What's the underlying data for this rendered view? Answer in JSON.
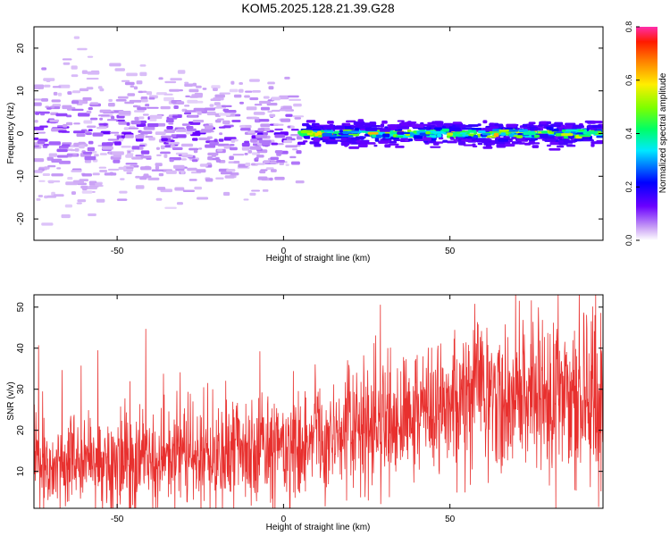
{
  "title": "KOM5.2025.128.21.39.G28",
  "chart_data": [
    {
      "type": "heatmap",
      "title": "KOM5.2025.128.21.39.G28",
      "xlabel": "Height of straight line (km)",
      "ylabel": "Frequency (Hz)",
      "xlim": [
        -75,
        96
      ],
      "ylim": [
        -25,
        25
      ],
      "x_ticks": [
        -50,
        0,
        50
      ],
      "y_ticks": [
        -20,
        -10,
        0,
        10,
        20
      ],
      "colorbar": {
        "label": "Normalized spectral amplitude",
        "range": [
          0,
          0.8
        ],
        "ticks": [
          "0.0",
          "0.2",
          "0.4",
          "0.6",
          "0.8"
        ]
      },
      "trend": "Broad scattered low-amplitude energy (about 0.05-0.15) between -75 and 0 km spreading roughly +/-20 Hz; from about 10 km upward energy narrows to a band near 0 Hz with amplitude about 0.3-0.8."
    },
    {
      "type": "line",
      "xlabel": "Height of straight line (km)",
      "ylabel": "SNR (v/v)",
      "xlim": [
        -75,
        96
      ],
      "ylim": [
        1,
        53
      ],
      "x_ticks": [
        -50,
        0,
        50
      ],
      "y_ticks": [
        10,
        20,
        30,
        40,
        50
      ],
      "color": "#e8302e",
      "trend_points": {
        "x": [
          -75,
          -50,
          -25,
          0,
          25,
          50,
          75,
          96
        ],
        "y": [
          12,
          12,
          13,
          16,
          21,
          27,
          28,
          26
        ]
      },
      "noise_amplitude": 9
    }
  ]
}
